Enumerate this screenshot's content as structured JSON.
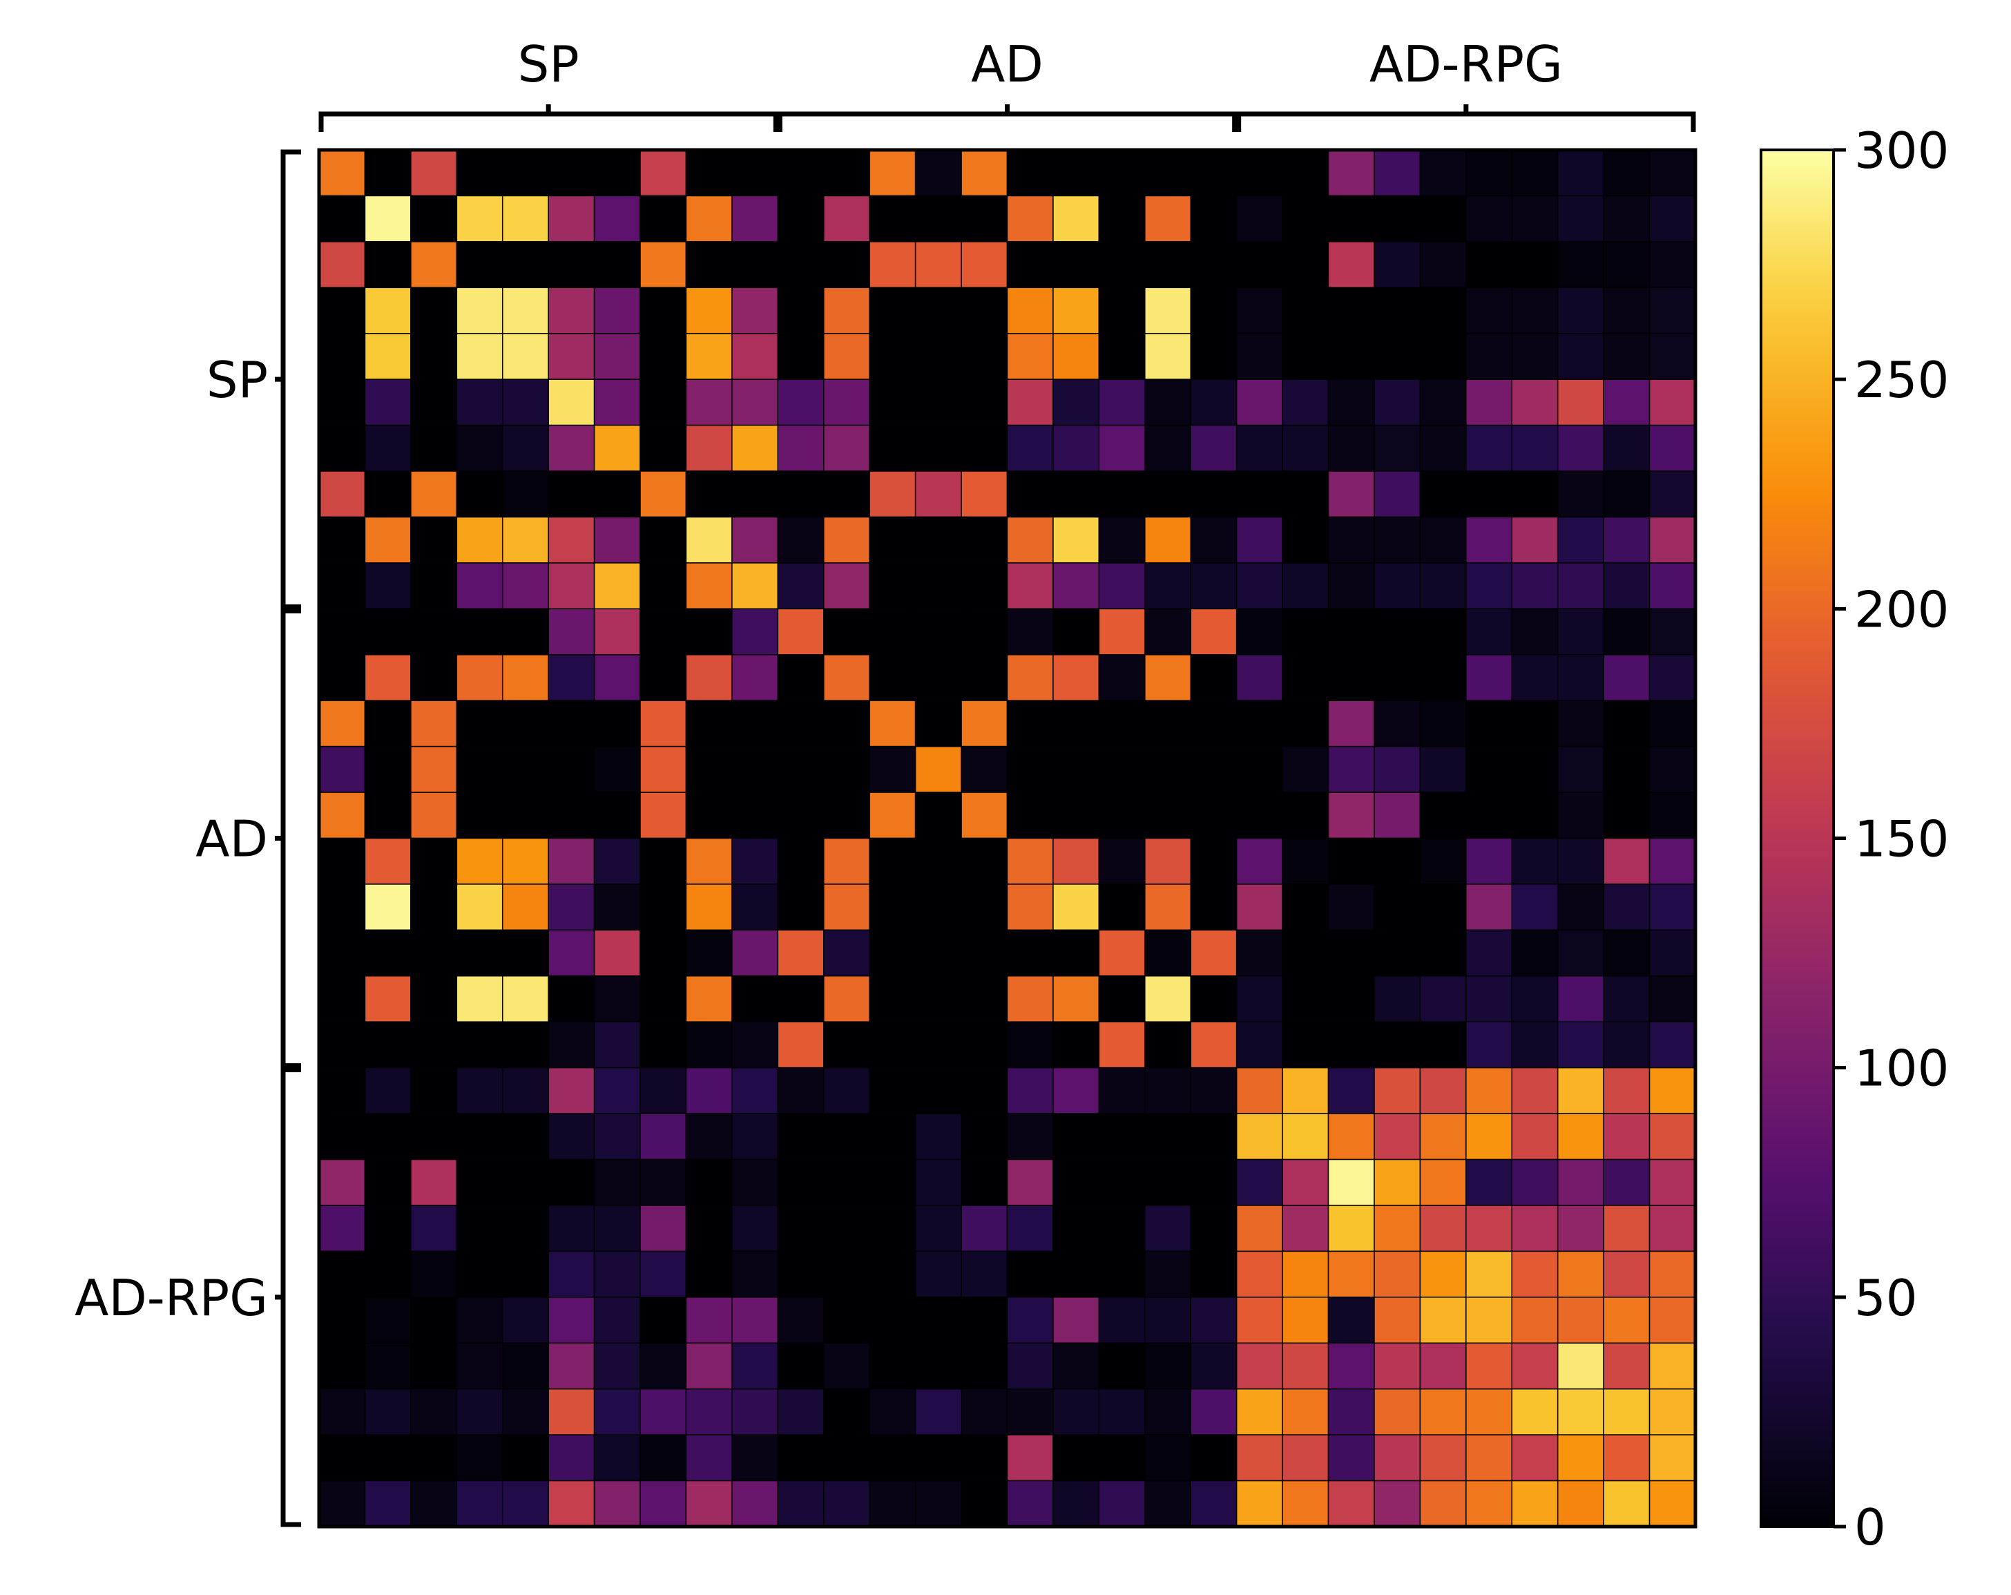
{
  "chart_data": {
    "type": "heatmap",
    "title": "",
    "xlabel": "",
    "ylabel": "",
    "n": 30,
    "groups": [
      {
        "label": "SP",
        "start": 0,
        "end": 10
      },
      {
        "label": "AD",
        "start": 10,
        "end": 20
      },
      {
        "label": "AD-RPG",
        "start": 20,
        "end": 30
      }
    ],
    "colorbar": {
      "colormap": "inferno",
      "min": 0,
      "max": 300,
      "ticks": [
        0,
        50,
        100,
        150,
        200,
        250,
        300
      ],
      "tick_labels": [
        "0",
        "50",
        "100",
        "150",
        "200",
        "250",
        "300"
      ]
    },
    "values": [
      [
        210,
        0,
        170,
        0,
        0,
        0,
        0,
        160,
        0,
        0,
        0,
        0,
        210,
        10,
        210,
        0,
        0,
        0,
        0,
        0,
        0,
        0,
        110,
        60,
        10,
        5,
        5,
        20,
        5,
        10
      ],
      [
        0,
        295,
        0,
        270,
        270,
        130,
        80,
        0,
        210,
        90,
        0,
        140,
        0,
        0,
        0,
        200,
        270,
        0,
        200,
        0,
        10,
        0,
        0,
        0,
        0,
        10,
        10,
        20,
        10,
        20
      ],
      [
        170,
        0,
        210,
        0,
        0,
        0,
        0,
        210,
        0,
        0,
        0,
        0,
        190,
        190,
        190,
        0,
        0,
        0,
        0,
        0,
        0,
        0,
        150,
        20,
        10,
        0,
        0,
        5,
        5,
        10
      ],
      [
        0,
        265,
        0,
        285,
        285,
        130,
        90,
        0,
        230,
        120,
        0,
        200,
        0,
        0,
        0,
        220,
        240,
        0,
        285,
        0,
        10,
        0,
        0,
        0,
        0,
        10,
        10,
        20,
        10,
        15
      ],
      [
        0,
        265,
        0,
        285,
        285,
        130,
        100,
        0,
        240,
        140,
        0,
        200,
        0,
        0,
        0,
        210,
        220,
        0,
        285,
        0,
        10,
        0,
        0,
        0,
        0,
        10,
        10,
        20,
        10,
        15
      ],
      [
        0,
        50,
        0,
        30,
        30,
        280,
        90,
        0,
        110,
        110,
        70,
        90,
        0,
        0,
        0,
        150,
        30,
        60,
        10,
        20,
        90,
        30,
        10,
        30,
        10,
        100,
        130,
        170,
        80,
        140
      ],
      [
        0,
        20,
        0,
        10,
        20,
        110,
        240,
        0,
        170,
        240,
        90,
        110,
        0,
        0,
        0,
        40,
        50,
        80,
        10,
        60,
        20,
        20,
        10,
        15,
        10,
        40,
        40,
        60,
        20,
        70
      ],
      [
        170,
        0,
        210,
        0,
        5,
        0,
        0,
        210,
        0,
        0,
        0,
        0,
        180,
        150,
        190,
        0,
        0,
        0,
        0,
        0,
        0,
        0,
        110,
        60,
        0,
        0,
        0,
        10,
        5,
        25
      ],
      [
        0,
        210,
        0,
        240,
        250,
        160,
        100,
        0,
        280,
        110,
        10,
        200,
        0,
        0,
        0,
        200,
        270,
        10,
        220,
        10,
        60,
        0,
        10,
        10,
        10,
        80,
        130,
        40,
        60,
        130
      ],
      [
        0,
        20,
        0,
        80,
        90,
        140,
        250,
        0,
        210,
        250,
        30,
        120,
        0,
        0,
        0,
        140,
        90,
        60,
        20,
        20,
        30,
        20,
        10,
        20,
        20,
        40,
        50,
        50,
        30,
        70
      ],
      [
        0,
        0,
        0,
        0,
        0,
        90,
        140,
        0,
        0,
        60,
        190,
        0,
        0,
        0,
        0,
        10,
        0,
        190,
        10,
        190,
        5,
        0,
        0,
        0,
        0,
        20,
        10,
        20,
        5,
        15
      ],
      [
        0,
        190,
        0,
        200,
        210,
        40,
        80,
        0,
        180,
        90,
        0,
        200,
        0,
        0,
        0,
        200,
        190,
        10,
        210,
        0,
        60,
        0,
        0,
        0,
        0,
        70,
        20,
        20,
        70,
        30
      ],
      [
        210,
        0,
        200,
        0,
        0,
        0,
        0,
        190,
        0,
        0,
        0,
        0,
        210,
        0,
        210,
        0,
        0,
        0,
        0,
        0,
        0,
        0,
        110,
        10,
        5,
        0,
        0,
        10,
        0,
        5
      ],
      [
        60,
        0,
        200,
        0,
        0,
        0,
        5,
        190,
        0,
        0,
        0,
        0,
        10,
        220,
        10,
        0,
        0,
        0,
        0,
        0,
        0,
        10,
        60,
        50,
        20,
        0,
        0,
        15,
        0,
        10
      ],
      [
        210,
        0,
        200,
        0,
        0,
        0,
        0,
        190,
        0,
        0,
        0,
        0,
        210,
        0,
        210,
        0,
        0,
        0,
        0,
        0,
        0,
        0,
        120,
        100,
        0,
        0,
        0,
        10,
        0,
        5
      ],
      [
        0,
        190,
        0,
        230,
        230,
        110,
        30,
        0,
        210,
        30,
        0,
        200,
        0,
        0,
        0,
        200,
        180,
        10,
        180,
        0,
        80,
        5,
        0,
        0,
        5,
        70,
        20,
        20,
        140,
        80
      ],
      [
        0,
        295,
        0,
        270,
        220,
        60,
        10,
        0,
        220,
        20,
        0,
        200,
        0,
        0,
        0,
        200,
        270,
        0,
        200,
        0,
        130,
        0,
        10,
        0,
        0,
        110,
        40,
        10,
        30,
        40
      ],
      [
        0,
        0,
        0,
        0,
        0,
        80,
        150,
        0,
        5,
        90,
        190,
        30,
        0,
        0,
        0,
        0,
        0,
        190,
        5,
        190,
        10,
        0,
        0,
        0,
        0,
        30,
        5,
        15,
        5,
        20
      ],
      [
        0,
        190,
        0,
        285,
        285,
        0,
        10,
        0,
        210,
        0,
        0,
        200,
        0,
        0,
        0,
        200,
        210,
        0,
        285,
        0,
        20,
        0,
        0,
        20,
        30,
        30,
        20,
        70,
        20,
        10
      ],
      [
        0,
        0,
        0,
        0,
        0,
        10,
        30,
        0,
        5,
        10,
        190,
        0,
        0,
        0,
        0,
        5,
        0,
        190,
        0,
        190,
        20,
        0,
        0,
        0,
        0,
        40,
        20,
        40,
        20,
        40
      ],
      [
        0,
        20,
        0,
        20,
        20,
        130,
        40,
        20,
        70,
        40,
        10,
        20,
        0,
        0,
        0,
        60,
        80,
        10,
        10,
        10,
        200,
        250,
        40,
        180,
        170,
        210,
        170,
        250,
        170,
        230
      ],
      [
        0,
        0,
        0,
        0,
        0,
        20,
        30,
        70,
        10,
        20,
        0,
        0,
        0,
        20,
        0,
        10,
        0,
        0,
        0,
        0,
        255,
        260,
        210,
        160,
        210,
        230,
        170,
        230,
        150,
        180
      ],
      [
        120,
        0,
        140,
        0,
        0,
        0,
        10,
        10,
        0,
        10,
        0,
        0,
        0,
        20,
        0,
        120,
        0,
        0,
        0,
        0,
        40,
        140,
        295,
        240,
        210,
        40,
        60,
        100,
        60,
        140
      ],
      [
        70,
        0,
        40,
        0,
        0,
        20,
        20,
        100,
        0,
        20,
        0,
        0,
        0,
        20,
        60,
        40,
        0,
        0,
        30,
        0,
        200,
        130,
        260,
        210,
        170,
        160,
        140,
        120,
        180,
        140
      ],
      [
        0,
        0,
        5,
        0,
        0,
        40,
        30,
        40,
        0,
        10,
        0,
        0,
        0,
        20,
        20,
        0,
        0,
        0,
        10,
        0,
        190,
        220,
        210,
        200,
        230,
        255,
        190,
        210,
        170,
        200
      ],
      [
        0,
        5,
        0,
        10,
        20,
        80,
        30,
        0,
        90,
        90,
        10,
        0,
        0,
        0,
        0,
        40,
        110,
        20,
        20,
        30,
        190,
        220,
        20,
        200,
        250,
        250,
        200,
        200,
        210,
        200
      ],
      [
        0,
        5,
        0,
        10,
        5,
        110,
        30,
        10,
        110,
        40,
        0,
        10,
        0,
        0,
        0,
        30,
        10,
        0,
        5,
        20,
        160,
        170,
        80,
        150,
        140,
        190,
        160,
        285,
        170,
        250
      ],
      [
        10,
        20,
        10,
        20,
        10,
        180,
        40,
        70,
        60,
        50,
        30,
        0,
        10,
        40,
        10,
        10,
        20,
        20,
        10,
        70,
        240,
        210,
        60,
        200,
        210,
        210,
        260,
        265,
        260,
        250
      ],
      [
        0,
        0,
        0,
        5,
        0,
        60,
        20,
        5,
        60,
        10,
        0,
        0,
        0,
        0,
        0,
        140,
        0,
        0,
        5,
        0,
        180,
        170,
        60,
        150,
        180,
        200,
        160,
        230,
        190,
        250
      ],
      [
        10,
        40,
        10,
        40,
        40,
        160,
        110,
        80,
        130,
        90,
        30,
        30,
        10,
        10,
        0,
        60,
        20,
        50,
        10,
        40,
        240,
        210,
        160,
        120,
        200,
        210,
        240,
        220,
        260,
        230
      ]
    ]
  }
}
